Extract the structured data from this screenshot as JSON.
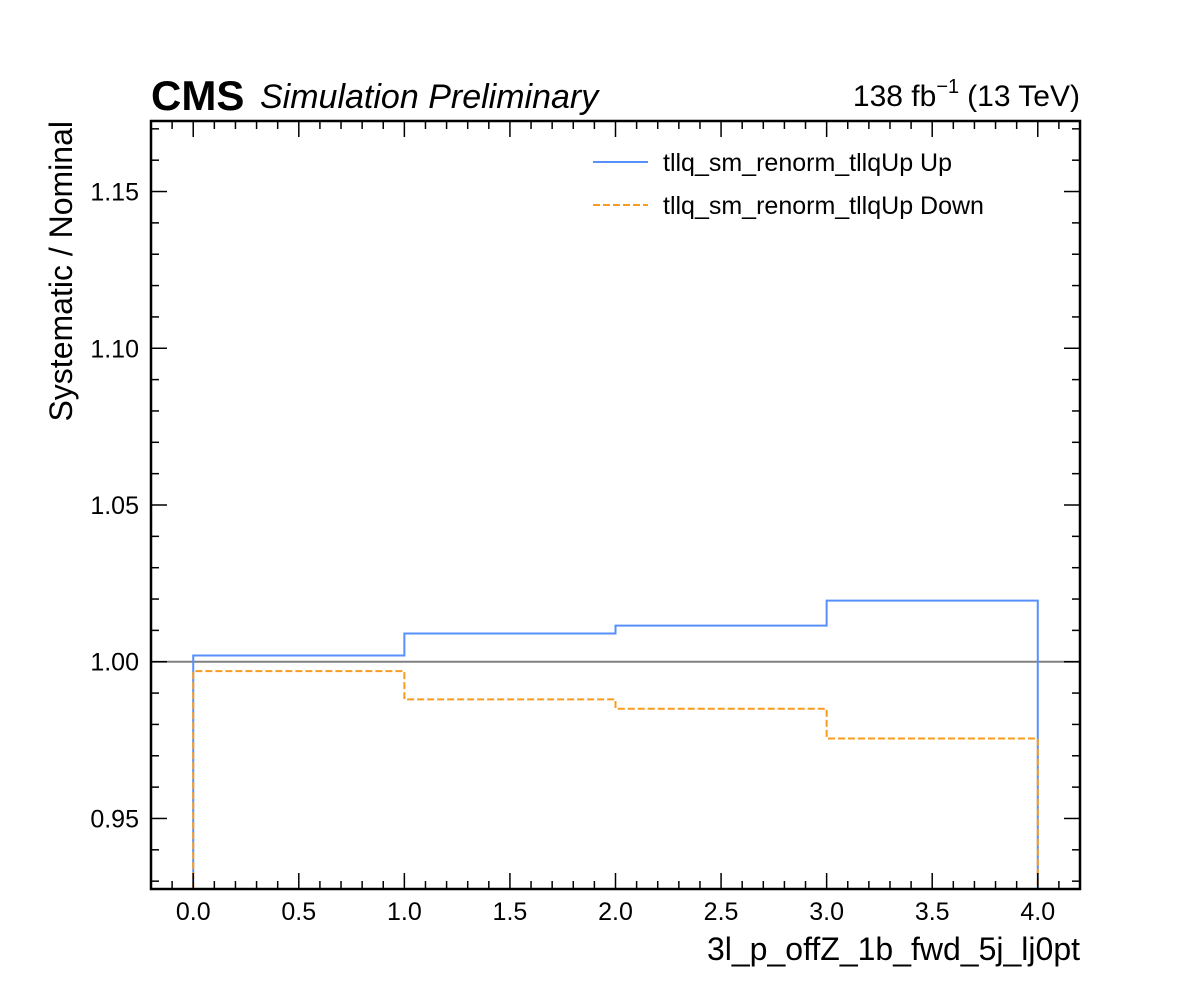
{
  "chart_data": {
    "type": "line",
    "experiment_label": "CMS",
    "subtitle": "Simulation Preliminary",
    "lumi": {
      "value": "138 fb",
      "exponent": "−1",
      "energy": "(13 TeV)"
    },
    "xlabel": "3l_p_offZ_1b_fwd_5j_lj0pt",
    "ylabel": "Systematic / Nominal",
    "xlim": [
      -0.2,
      4.2
    ],
    "ylim": [
      0.9275,
      1.1725
    ],
    "x_ticks": [
      0.0,
      0.5,
      1.0,
      1.5,
      2.0,
      2.5,
      3.0,
      3.5,
      4.0
    ],
    "x_tick_labels": [
      "0.0",
      "0.5",
      "1.0",
      "1.5",
      "2.0",
      "2.5",
      "3.0",
      "3.5",
      "4.0"
    ],
    "y_ticks": [
      0.95,
      1.0,
      1.05,
      1.1,
      1.15
    ],
    "y_tick_labels": [
      "0.95",
      "1.00",
      "1.05",
      "1.10",
      "1.15"
    ],
    "reference_line": {
      "y": 1.0,
      "color": "#808080"
    },
    "bin_edges": [
      0,
      1,
      2,
      3,
      4
    ],
    "series": [
      {
        "name": "tllq_sm_renorm_tllqUp Up",
        "values": [
          1.002,
          1.009,
          1.0115,
          1.0195
        ],
        "color": "#5790fc",
        "style": "solid"
      },
      {
        "name": "tllq_sm_renorm_tllqUp Down",
        "values": [
          0.997,
          0.988,
          0.985,
          0.9755
        ],
        "color": "#f89c20",
        "style": "dashed"
      }
    ],
    "legend_position": "top-right",
    "grid": false
  }
}
